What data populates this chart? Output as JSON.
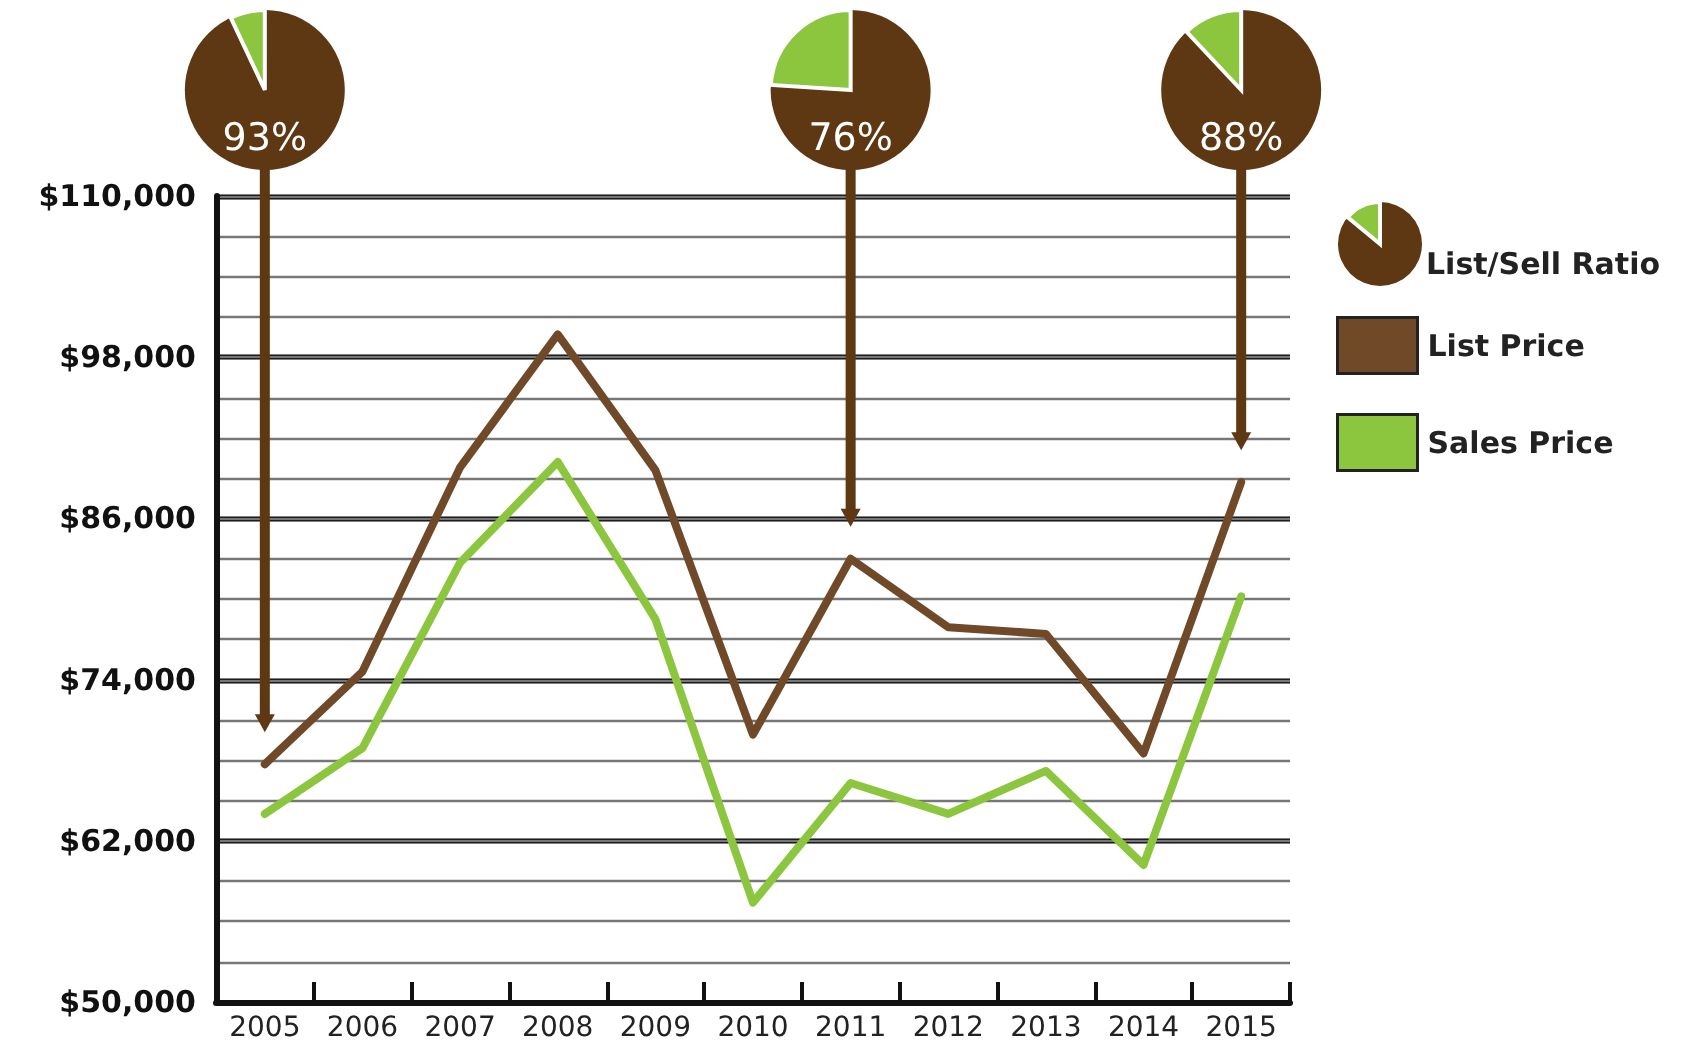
{
  "chart_data": {
    "type": "line",
    "categories": [
      "2005",
      "2006",
      "2007",
      "2008",
      "2009",
      "2010",
      "2011",
      "2012",
      "2013",
      "2014",
      "2015"
    ],
    "series": [
      {
        "name": "List Price",
        "color": "#704a28",
        "values": [
          67700,
          74600,
          89800,
          99700,
          89600,
          69900,
          83000,
          77900,
          77400,
          68500,
          88700
        ]
      },
      {
        "name": "Sales Price",
        "color": "#8cc63f",
        "values": [
          64000,
          68900,
          82700,
          90200,
          78500,
          57400,
          66300,
          64000,
          67200,
          60200,
          80200
        ]
      }
    ],
    "ylim": [
      50000,
      110000
    ],
    "yticks": [
      {
        "value": 50000,
        "label": "$50,000"
      },
      {
        "value": 53000,
        "label": null
      },
      {
        "value": 56000,
        "label": null
      },
      {
        "value": 59000,
        "label": null
      },
      {
        "value": 62000,
        "label": "$62,000"
      },
      {
        "value": 65000,
        "label": null
      },
      {
        "value": 68000,
        "label": null
      },
      {
        "value": 71000,
        "label": null
      },
      {
        "value": 74000,
        "label": "$74,000"
      },
      {
        "value": 77000,
        "label": null
      },
      {
        "value": 80000,
        "label": null
      },
      {
        "value": 83000,
        "label": null
      },
      {
        "value": 86000,
        "label": "$86,000"
      },
      {
        "value": 89000,
        "label": null
      },
      {
        "value": 92000,
        "label": null
      },
      {
        "value": 95000,
        "label": null
      },
      {
        "value": 98000,
        "label": "$98,000"
      },
      {
        "value": 101000,
        "label": null
      },
      {
        "value": 104000,
        "label": null
      },
      {
        "value": 107000,
        "label": null
      },
      {
        "value": 110000,
        "label": "$110,000"
      }
    ],
    "grid": "y",
    "legend": "right",
    "marker": "none",
    "line_style": "solid",
    "annotations": [
      "List/Sell Ratio",
      {
        "text": "93%",
        "x": "2005"
      },
      {
        "text": "76%",
        "x": "2011"
      },
      {
        "text": "88%",
        "x": "2015"
      }
    ]
  }
}
